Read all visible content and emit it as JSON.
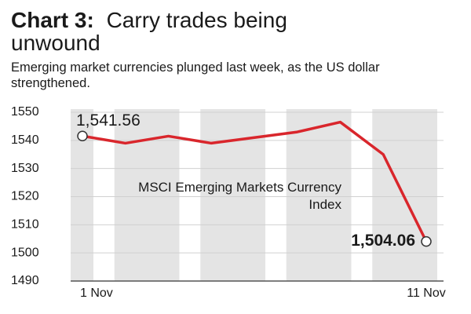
{
  "chart_data": {
    "type": "line",
    "title_label": "Chart 3:",
    "title": "Carry trades being unwound",
    "subtitle": "Emerging market currencies plunged last week, as the US dollar strengthened.",
    "annotation": "MSCI Emerging Markets Currency Index",
    "categories": [
      "1 Nov",
      null,
      null,
      null,
      null,
      null,
      null,
      null,
      "11 Nov"
    ],
    "values": [
      1541.56,
      1539,
      1541.5,
      1539,
      1541,
      1543,
      1546.5,
      1535,
      1504.06
    ],
    "value_labels": [
      "1,541.56",
      null,
      null,
      null,
      null,
      null,
      null,
      null,
      "1,504.06"
    ],
    "color": "#d9262c",
    "ylim": [
      1490,
      1550
    ],
    "yticks": [
      1490,
      1500,
      1510,
      1520,
      1530,
      1540,
      1550
    ]
  }
}
